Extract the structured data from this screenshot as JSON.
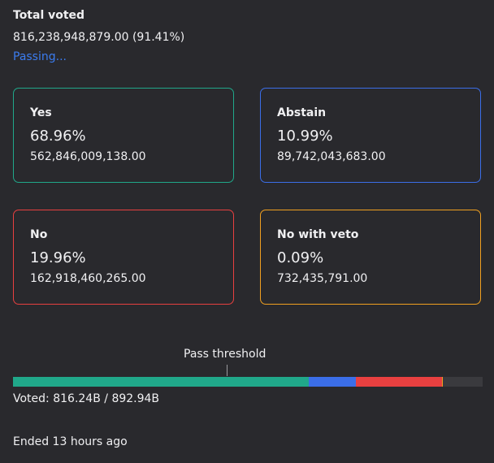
{
  "summary": {
    "title": "Total voted",
    "total": "816,238,948,879.00 (91.41%)",
    "status": "Passing..."
  },
  "options": [
    {
      "name": "Yes",
      "percent": "68.96%",
      "amount": "562,846,009,138.00",
      "color": "#20a88a"
    },
    {
      "name": "Abstain",
      "percent": "10.99%",
      "amount": "89,742,043,683.00",
      "color": "#3b6ee8"
    },
    {
      "name": "No",
      "percent": "19.96%",
      "amount": "162,918,460,265.00",
      "color": "#e84040"
    },
    {
      "name": "No with veto",
      "percent": "0.09%",
      "amount": "732,435,791.00",
      "color": "#f0a020"
    }
  ],
  "threshold": {
    "label": "Pass threshold"
  },
  "voted": {
    "label": "Voted:",
    "voted": "816.24B",
    "separator": "/",
    "total": "892.94B"
  },
  "ended": "Ended 13 hours ago"
}
